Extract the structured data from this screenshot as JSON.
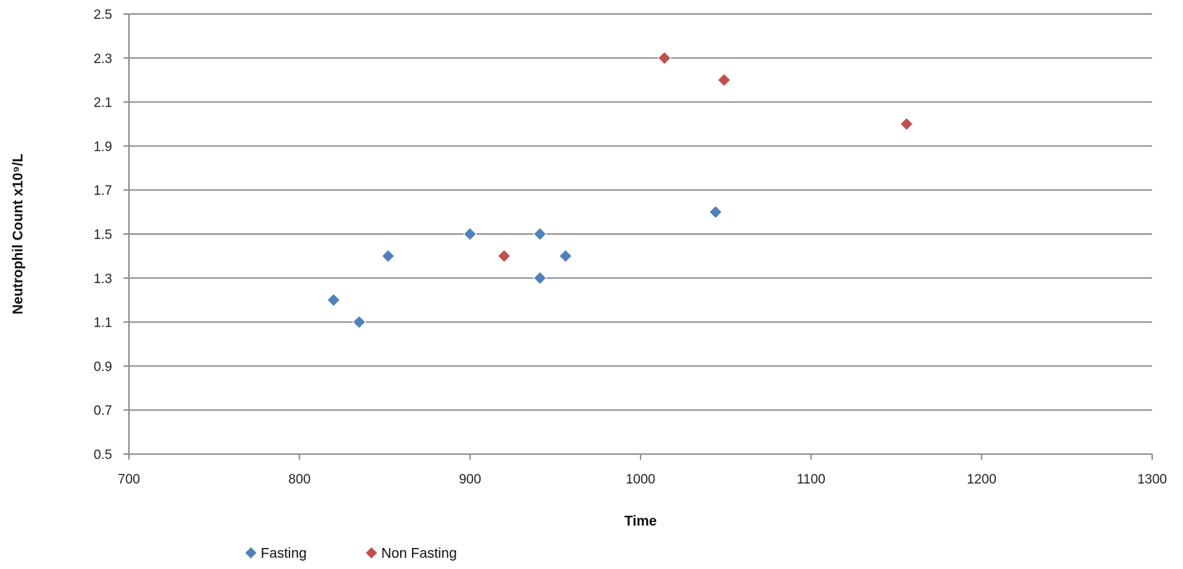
{
  "chart_data": {
    "type": "scatter",
    "title": "",
    "xlabel": "Time",
    "ylabel": "Neutrophil Count x10⁹/L",
    "xlim": [
      700,
      1300
    ],
    "ylim": [
      0.5,
      2.5
    ],
    "x_ticks": [
      700,
      800,
      900,
      1000,
      1100,
      1200,
      1300
    ],
    "y_ticks": [
      0.5,
      0.7,
      0.9,
      1.1,
      1.3,
      1.5,
      1.7,
      1.9,
      2.1,
      2.3,
      2.5
    ],
    "x_tick_labels": [
      "700",
      "800",
      "900",
      "1000",
      "1100",
      "1200",
      "1300"
    ],
    "y_tick_labels": [
      "0.5",
      "0.7",
      "0.9",
      "1.1",
      "1.3",
      "1.5",
      "1.7",
      "1.9",
      "2.1",
      "2.3",
      "2.5"
    ],
    "grid": "horizontal",
    "legend_position": "bottom-left",
    "series": [
      {
        "name": "Fasting",
        "color": "#4f81bd",
        "marker": "diamond",
        "x": [
          820,
          835,
          852,
          900,
          941,
          941,
          956,
          1044
        ],
        "y": [
          1.2,
          1.1,
          1.4,
          1.5,
          1.5,
          1.3,
          1.4,
          1.6
        ]
      },
      {
        "name": "Non Fasting",
        "color": "#c0504d",
        "marker": "diamond",
        "x": [
          920,
          1014,
          1049,
          1156
        ],
        "y": [
          1.4,
          2.3,
          2.2,
          2.0
        ]
      }
    ]
  }
}
